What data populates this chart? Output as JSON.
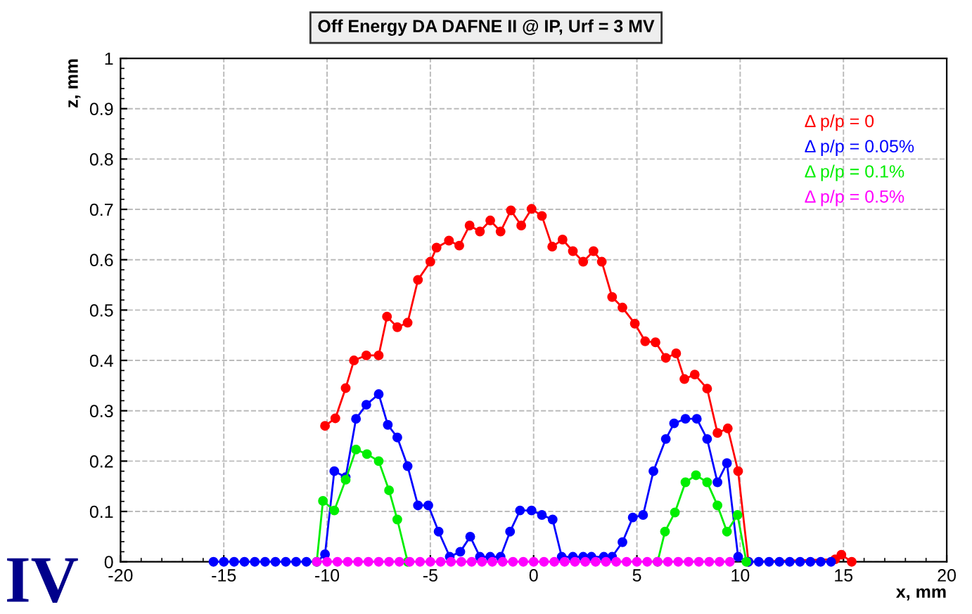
{
  "chart_data": {
    "type": "line",
    "title": "Off Energy DA DAFNE II @ IP, Urf = 3 MV",
    "xlabel": "x, mm",
    "ylabel": "z, mm",
    "xlim": [
      -20,
      20
    ],
    "ylim": [
      0,
      1
    ],
    "xticks": [
      -20,
      -15,
      -10,
      -5,
      0,
      5,
      10,
      15,
      20
    ],
    "yticks": [
      0,
      0.1,
      0.2,
      0.3,
      0.4,
      0.5,
      0.6,
      0.7,
      0.8,
      0.9,
      1
    ],
    "grid": true,
    "legend": "top right",
    "marker": "circle",
    "line_style": "solid",
    "annotations": [
      "IV"
    ],
    "series": [
      {
        "name": "Δ p/p = 0",
        "color": "#ff0000",
        "x": [
          -10.1,
          -9.6,
          -9.1,
          -8.7,
          -8.1,
          -7.5,
          -7.1,
          -6.6,
          -6.1,
          -5.6,
          -5.0,
          -4.7,
          -4.1,
          -3.6,
          -3.1,
          -2.6,
          -2.1,
          -1.6,
          -1.1,
          -0.6,
          -0.1,
          0.4,
          0.9,
          1.4,
          1.9,
          2.4,
          2.9,
          3.3,
          3.8,
          4.3,
          4.9,
          5.4,
          5.9,
          6.4,
          6.9,
          7.3,
          7.8,
          8.4,
          8.9,
          9.4,
          9.9,
          10.4,
          14.6,
          14.9,
          15.4
        ],
        "values": [
          0.27,
          0.285,
          0.345,
          0.4,
          0.41,
          0.41,
          0.487,
          0.466,
          0.475,
          0.56,
          0.596,
          0.624,
          0.638,
          0.628,
          0.668,
          0.656,
          0.678,
          0.656,
          0.698,
          0.668,
          0.701,
          0.687,
          0.626,
          0.64,
          0.617,
          0.596,
          0.617,
          0.596,
          0.526,
          0.505,
          0.473,
          0.438,
          0.436,
          0.405,
          0.414,
          0.363,
          0.372,
          0.344,
          0.256,
          0.265,
          0.18,
          0,
          0.005,
          0.014,
          0
        ]
      },
      {
        "name": "Δ p/p = 0.05%",
        "color": "#0000ff",
        "x": [
          -15.5,
          -15,
          -14.5,
          -14,
          -13.5,
          -13,
          -12.5,
          -12,
          -11.5,
          -11,
          -10.5,
          -10.1,
          -9.65,
          -9.1,
          -8.6,
          -8.1,
          -7.5,
          -7.06,
          -6.6,
          -6.1,
          -5.6,
          -5.1,
          -4.6,
          -4.06,
          -3.55,
          -3.07,
          -2.6,
          -2.1,
          -1.6,
          -1.14,
          -0.66,
          -0.1,
          0.4,
          0.92,
          1.36,
          1.9,
          2.4,
          2.8,
          3.4,
          3.8,
          4.3,
          4.8,
          5.3,
          5.8,
          6.4,
          6.8,
          7.35,
          7.9,
          8.4,
          8.9,
          9.36,
          9.9,
          10.4,
          10.9,
          11.4,
          11.9,
          12.4,
          12.9,
          13.4,
          13.9,
          14.4
        ],
        "values": [
          0,
          0,
          0,
          0,
          0,
          0,
          0,
          0,
          0,
          0,
          0,
          0.015,
          0.18,
          0.168,
          0.284,
          0.312,
          0.333,
          0.272,
          0.247,
          0.19,
          0.112,
          0.112,
          0.06,
          0.01,
          0.02,
          0.05,
          0.01,
          0.01,
          0.01,
          0.06,
          0.102,
          0.102,
          0.093,
          0.084,
          0.01,
          0.01,
          0.01,
          0.01,
          0.01,
          0.01,
          0.039,
          0.088,
          0.093,
          0.18,
          0.244,
          0.275,
          0.284,
          0.284,
          0.244,
          0.158,
          0.196,
          0.01,
          0,
          0,
          0,
          0,
          0,
          0,
          0,
          0,
          0
        ]
      },
      {
        "name": "Δ p/p = 0.1%",
        "color": "#00ee00",
        "x": [
          -10.5,
          -10.2,
          -9.65,
          -9.1,
          -8.6,
          -8.07,
          -7.5,
          -7.0,
          -6.6,
          -6.1,
          0,
          6.0,
          6.36,
          6.84,
          7.35,
          7.86,
          8.4,
          8.9,
          9.36,
          9.87,
          10.3
        ],
        "values": [
          0,
          0.121,
          0.102,
          0.163,
          0.223,
          0.214,
          0.2,
          0.142,
          0.084,
          0,
          null,
          0,
          0.06,
          0.098,
          0.158,
          0.172,
          0.158,
          0.112,
          0.06,
          0.093,
          0
        ]
      },
      {
        "name": "Δ p/p = 0.5%",
        "color": "#ff00ff",
        "x": [
          -10.5,
          -10,
          -9.5,
          -9,
          -8.5,
          -8,
          -7.5,
          -7,
          -6.5,
          -6,
          -5.5,
          -5,
          -4.5,
          -4,
          -3.5,
          -3,
          -2.5,
          -2,
          -1.5,
          -1,
          -0.5,
          0,
          0.5,
          1,
          1.5,
          2,
          2.5,
          3,
          3.5,
          4,
          4.5,
          5,
          5.5,
          6,
          6.5,
          7,
          7.5,
          8,
          8.5,
          9,
          9.5
        ],
        "values": [
          0,
          0,
          0,
          0,
          0,
          0,
          0,
          0,
          0,
          0,
          0,
          0,
          0,
          0,
          0,
          0,
          0,
          0,
          0,
          0,
          0,
          0,
          0,
          0,
          0,
          0,
          0,
          0,
          0,
          0,
          0,
          0,
          0,
          0,
          0,
          0,
          0,
          0,
          0,
          0,
          0
        ]
      }
    ]
  }
}
